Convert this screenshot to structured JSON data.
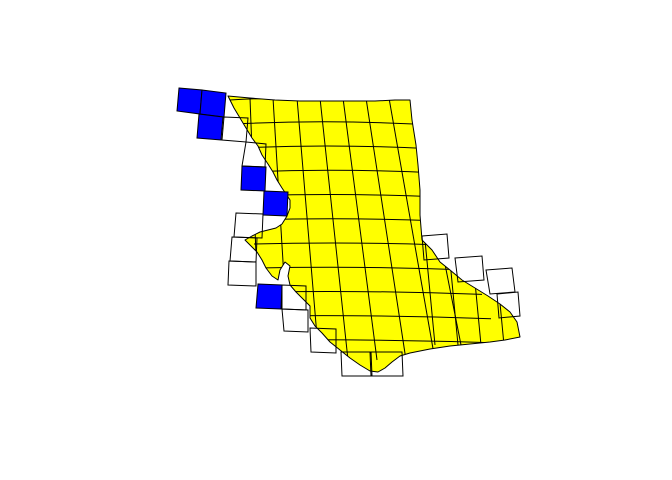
{
  "colors": {
    "background": "#ffffff",
    "region_fill": "#ffff00",
    "flagged_cell_fill": "#0000ff",
    "outline": "#000000"
  },
  "map": {
    "grid_cells_flagged_count": 6
  }
}
